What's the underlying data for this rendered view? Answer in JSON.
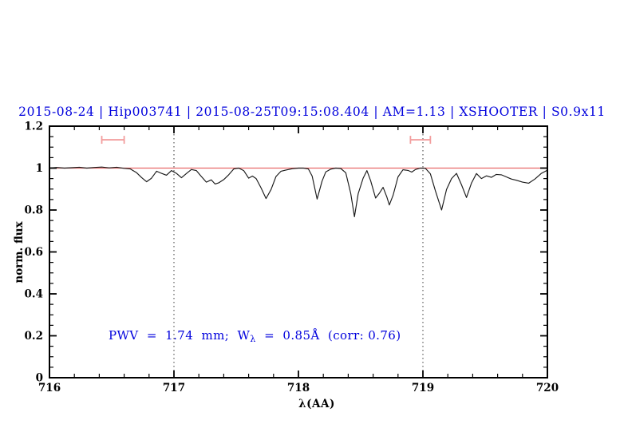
{
  "header": {
    "title": "2015-08-24 | Hip003741 | 2015-08-25T09:15:08.404 | AM=1.13 | XSHOOTER | S0.9x11",
    "title_color": "#0000dd"
  },
  "annotation": {
    "prefix": "PWV  =  1.74  mm;  W",
    "sub": "λ",
    "suffix": "  =  0.85Å  (corr: 0.76)"
  },
  "chart_data": {
    "type": "line",
    "title": "2015-08-24 | Hip003741 | 2015-08-25T09:15:08.404 | AM=1.13 | XSHOOTER | S0.9x11",
    "xlabel": "λ(AA)",
    "ylabel": "norm. flux",
    "xlim": [
      716,
      720
    ],
    "ylim": [
      0,
      1.2
    ],
    "x_major_ticks": [
      716,
      717,
      718,
      719,
      720
    ],
    "x_tick_labels": [
      "716",
      "717",
      "718",
      "719",
      "720"
    ],
    "x_minor_step": 0.2,
    "y_major_ticks": [
      0,
      0.2,
      0.4,
      0.6,
      0.8,
      1,
      1.2
    ],
    "y_tick_labels": [
      "0",
      "0.2",
      "0.4",
      "0.6",
      "0.8",
      "1",
      "1.2"
    ],
    "y_minor_step": 0.05,
    "grid": "off",
    "legend": "none",
    "vlines": [
      717,
      719
    ],
    "continuum_level": 1.0,
    "colors": {
      "spectrum": "#1a1a1a",
      "continuum": "#e86a6a",
      "error_marker": "#f29e9e",
      "annotation_blue": "#0000dd",
      "axis": "#000000"
    },
    "error_markers": [
      {
        "x_min": 716.42,
        "x_max": 716.6,
        "y": 1.135,
        "cap_half": 0.019
      },
      {
        "x_min": 718.9,
        "x_max": 719.06,
        "y": 1.135,
        "cap_half": 0.019
      }
    ],
    "series": [
      {
        "name": "telluric-spectrum",
        "x": [
          716.0,
          716.06,
          716.12,
          716.18,
          716.24,
          716.3,
          716.36,
          716.42,
          716.48,
          716.54,
          716.6,
          716.65,
          716.7,
          716.74,
          716.78,
          716.82,
          716.86,
          716.9,
          716.94,
          716.98,
          717.02,
          717.06,
          717.1,
          717.14,
          717.18,
          717.22,
          717.26,
          717.3,
          717.33,
          717.36,
          717.4,
          717.44,
          717.48,
          717.52,
          717.56,
          717.6,
          717.63,
          717.66,
          717.7,
          717.74,
          717.78,
          717.82,
          717.86,
          717.9,
          717.95,
          718.0,
          718.04,
          718.08,
          718.11,
          718.15,
          718.19,
          718.22,
          718.26,
          718.3,
          718.34,
          718.38,
          718.42,
          718.45,
          718.48,
          718.52,
          718.55,
          718.58,
          718.62,
          718.65,
          718.68,
          718.71,
          718.73,
          718.76,
          718.8,
          718.84,
          718.88,
          718.91,
          718.94,
          718.98,
          719.02,
          719.06,
          719.1,
          719.15,
          719.19,
          719.23,
          719.27,
          719.31,
          719.35,
          719.39,
          719.43,
          719.47,
          719.51,
          719.55,
          719.59,
          719.63,
          719.67,
          719.71,
          719.75,
          719.8,
          719.85,
          719.9,
          719.95,
          720.0
        ],
        "y": [
          1.0,
          1.003,
          1.0,
          1.002,
          1.004,
          1.0,
          1.003,
          1.005,
          1.001,
          1.004,
          0.999,
          0.996,
          0.978,
          0.955,
          0.935,
          0.952,
          0.985,
          0.975,
          0.966,
          0.988,
          0.975,
          0.954,
          0.974,
          0.993,
          0.988,
          0.96,
          0.933,
          0.944,
          0.924,
          0.93,
          0.945,
          0.968,
          0.996,
          1.0,
          0.988,
          0.952,
          0.962,
          0.95,
          0.905,
          0.855,
          0.898,
          0.96,
          0.985,
          0.991,
          0.997,
          1.0,
          1.0,
          0.996,
          0.962,
          0.852,
          0.938,
          0.982,
          0.995,
          1.0,
          0.998,
          0.978,
          0.88,
          0.768,
          0.878,
          0.952,
          0.988,
          0.94,
          0.857,
          0.88,
          0.908,
          0.862,
          0.824,
          0.87,
          0.958,
          0.992,
          0.989,
          0.981,
          0.993,
          1.0,
          0.999,
          0.972,
          0.892,
          0.8,
          0.898,
          0.95,
          0.975,
          0.92,
          0.86,
          0.928,
          0.974,
          0.95,
          0.963,
          0.956,
          0.97,
          0.968,
          0.958,
          0.948,
          0.942,
          0.933,
          0.928,
          0.948,
          0.974,
          0.99
        ]
      }
    ],
    "annotation_text": "PWV = 1.74 mm; Wλ = 0.85Å (corr: 0.76)"
  }
}
